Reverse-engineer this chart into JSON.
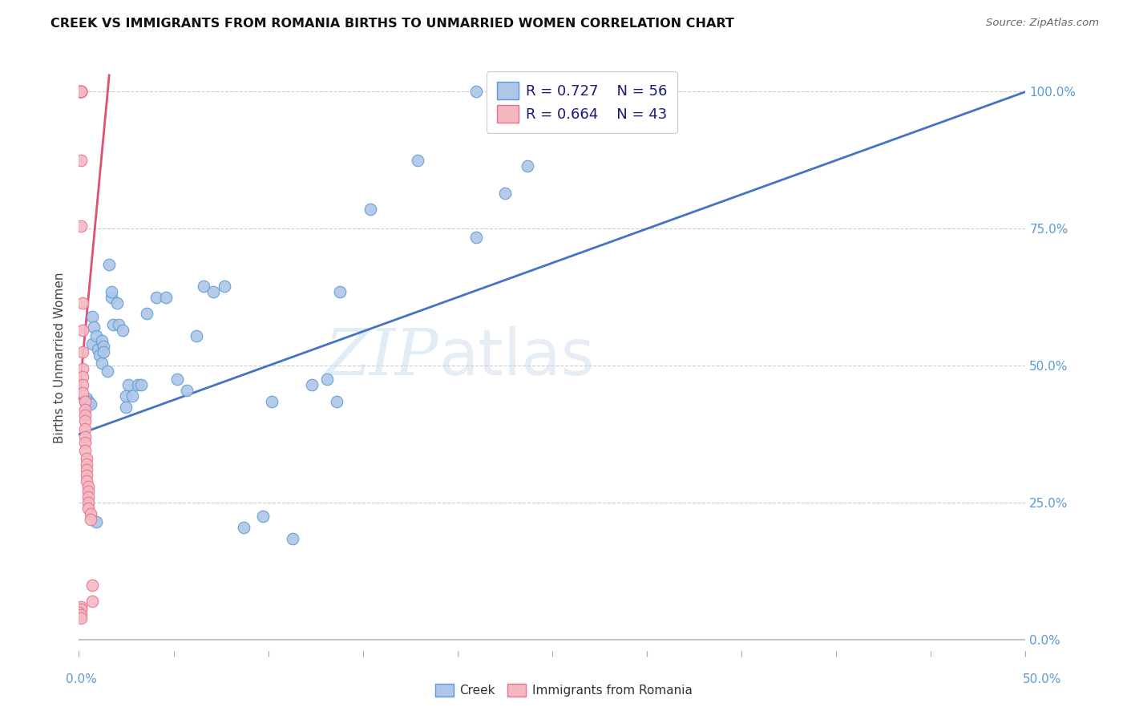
{
  "title": "CREEK VS IMMIGRANTS FROM ROMANIA BIRTHS TO UNMARRIED WOMEN CORRELATION CHART",
  "source": "Source: ZipAtlas.com",
  "ylabel": "Births to Unmarried Women",
  "yticks": [
    "0.0%",
    "25.0%",
    "50.0%",
    "75.0%",
    "100.0%"
  ],
  "ytick_vals": [
    0.0,
    0.25,
    0.5,
    0.75,
    1.0
  ],
  "xtick_left": "0.0%",
  "xtick_right": "50.0%",
  "xlim": [
    0.0,
    0.5
  ],
  "ylim": [
    -0.02,
    1.05
  ],
  "watermark_zip": "ZIP",
  "watermark_atlas": "atlas",
  "legend_creek_R": 0.727,
  "legend_creek_N": 56,
  "legend_romania_R": 0.664,
  "legend_romania_N": 43,
  "creek_color": "#aec6e8",
  "creek_edge_color": "#5b9bd5",
  "romania_color": "#f4b8c1",
  "romania_edge_color": "#e87090",
  "creek_line_color": "#4472c4",
  "romania_line_color": "#e05070",
  "creek_line": [
    [
      0.0,
      0.375
    ],
    [
      0.5,
      1.0
    ]
  ],
  "romania_line": [
    [
      0.0,
      0.44
    ],
    [
      0.016,
      1.03
    ]
  ],
  "creek_scatter": [
    [
      0.003,
      0.435
    ],
    [
      0.004,
      0.435
    ],
    [
      0.004,
      0.44
    ],
    [
      0.005,
      0.43
    ],
    [
      0.005,
      0.435
    ],
    [
      0.006,
      0.43
    ],
    [
      0.007,
      0.59
    ],
    [
      0.007,
      0.54
    ],
    [
      0.008,
      0.57
    ],
    [
      0.009,
      0.555
    ],
    [
      0.009,
      0.215
    ],
    [
      0.01,
      0.53
    ],
    [
      0.011,
      0.52
    ],
    [
      0.012,
      0.505
    ],
    [
      0.012,
      0.545
    ],
    [
      0.013,
      0.535
    ],
    [
      0.013,
      0.525
    ],
    [
      0.015,
      0.49
    ],
    [
      0.016,
      0.685
    ],
    [
      0.017,
      0.625
    ],
    [
      0.017,
      0.635
    ],
    [
      0.018,
      0.575
    ],
    [
      0.02,
      0.615
    ],
    [
      0.021,
      0.575
    ],
    [
      0.023,
      0.565
    ],
    [
      0.025,
      0.445
    ],
    [
      0.025,
      0.425
    ],
    [
      0.026,
      0.465
    ],
    [
      0.028,
      0.445
    ],
    [
      0.031,
      0.465
    ],
    [
      0.033,
      0.465
    ],
    [
      0.036,
      0.595
    ],
    [
      0.041,
      0.625
    ],
    [
      0.046,
      0.625
    ],
    [
      0.052,
      0.475
    ],
    [
      0.057,
      0.455
    ],
    [
      0.062,
      0.555
    ],
    [
      0.066,
      0.645
    ],
    [
      0.071,
      0.635
    ],
    [
      0.077,
      0.645
    ],
    [
      0.087,
      0.205
    ],
    [
      0.097,
      0.225
    ],
    [
      0.102,
      0.435
    ],
    [
      0.113,
      0.185
    ],
    [
      0.123,
      0.465
    ],
    [
      0.131,
      0.475
    ],
    [
      0.136,
      0.435
    ],
    [
      0.138,
      0.635
    ],
    [
      0.154,
      0.785
    ],
    [
      0.179,
      0.875
    ],
    [
      0.21,
      1.0
    ],
    [
      0.21,
      0.735
    ],
    [
      0.225,
      0.815
    ],
    [
      0.236,
      1.0
    ],
    [
      0.237,
      0.865
    ],
    [
      0.243,
      1.0
    ]
  ],
  "romania_scatter": [
    [
      0.0,
      1.0
    ],
    [
      0.0,
      1.0
    ],
    [
      0.001,
      1.0
    ],
    [
      0.001,
      1.0
    ],
    [
      0.001,
      1.0
    ],
    [
      0.001,
      1.0
    ],
    [
      0.001,
      1.0
    ],
    [
      0.001,
      0.875
    ],
    [
      0.001,
      0.755
    ],
    [
      0.002,
      0.615
    ],
    [
      0.002,
      0.565
    ],
    [
      0.002,
      0.525
    ],
    [
      0.002,
      0.495
    ],
    [
      0.002,
      0.48
    ],
    [
      0.002,
      0.465
    ],
    [
      0.002,
      0.45
    ],
    [
      0.003,
      0.435
    ],
    [
      0.003,
      0.42
    ],
    [
      0.003,
      0.41
    ],
    [
      0.003,
      0.4
    ],
    [
      0.003,
      0.385
    ],
    [
      0.003,
      0.37
    ],
    [
      0.003,
      0.36
    ],
    [
      0.003,
      0.345
    ],
    [
      0.004,
      0.33
    ],
    [
      0.004,
      0.32
    ],
    [
      0.004,
      0.31
    ],
    [
      0.004,
      0.3
    ],
    [
      0.004,
      0.29
    ],
    [
      0.005,
      0.28
    ],
    [
      0.005,
      0.27
    ],
    [
      0.005,
      0.26
    ],
    [
      0.005,
      0.25
    ],
    [
      0.005,
      0.24
    ],
    [
      0.006,
      0.23
    ],
    [
      0.006,
      0.22
    ],
    [
      0.007,
      0.1
    ],
    [
      0.007,
      0.07
    ],
    [
      0.001,
      0.06
    ],
    [
      0.001,
      0.055
    ],
    [
      0.0,
      0.05
    ],
    [
      0.001,
      0.045
    ],
    [
      0.001,
      0.04
    ]
  ]
}
